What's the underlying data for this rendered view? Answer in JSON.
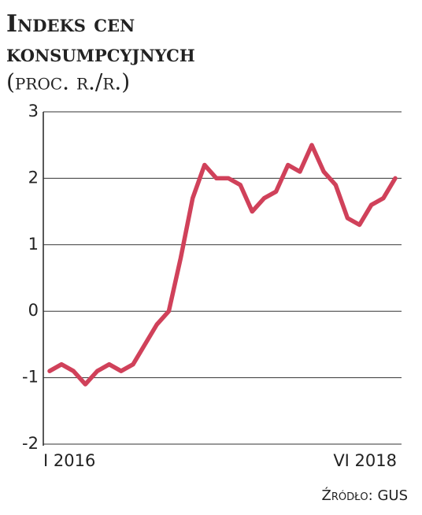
{
  "chart_data": {
    "type": "line",
    "title": "Indeks cen",
    "title_line2": "konsumpcyjnych",
    "subtitle": "(proc. r./r.)",
    "source": "Źródło: GUS",
    "categories": [
      "I 2016",
      null,
      null,
      null,
      null,
      null,
      null,
      null,
      null,
      null,
      null,
      null,
      null,
      null,
      null,
      null,
      null,
      null,
      null,
      null,
      null,
      null,
      null,
      null,
      null,
      null,
      null,
      null,
      null,
      "VI 2018"
    ],
    "values": [
      -0.9,
      -0.8,
      -0.9,
      -1.1,
      -0.9,
      -0.8,
      -0.9,
      -0.8,
      -0.5,
      -0.2,
      0.0,
      0.8,
      1.7,
      2.2,
      2.0,
      2.0,
      1.9,
      1.5,
      1.7,
      1.8,
      2.2,
      2.1,
      2.5,
      2.1,
      1.9,
      1.4,
      1.3,
      1.6,
      1.7,
      2.0
    ],
    "color": "#d0415a",
    "ylim": [
      -2,
      3
    ],
    "yticks": [
      -2,
      -1,
      0,
      1,
      2,
      3
    ],
    "grid": true
  }
}
